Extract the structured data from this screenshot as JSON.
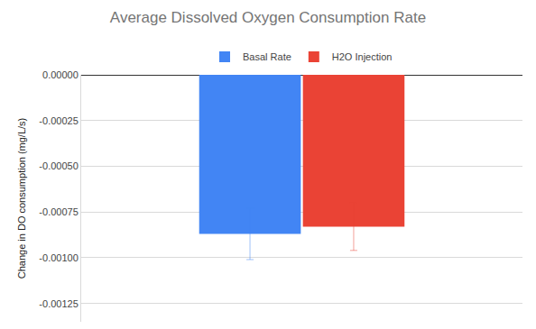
{
  "chart_data": {
    "type": "bar",
    "title": "Average Dissolved Oxygen Consumption Rate",
    "y_label": "Change in DO consumption (mg/L/s)",
    "categories": [
      null
    ],
    "series": [
      {
        "name": "Basal Rate",
        "color": "#4285f4",
        "values": [
          -0.00087
        ],
        "error": [
          0.00014
        ]
      },
      {
        "name": "H2O Injection",
        "color": "#ea4335",
        "values": [
          -0.00083
        ],
        "error": [
          0.00013
        ]
      }
    ],
    "ylim": [
      -0.00135,
      0
    ],
    "yticks": [
      {
        "value": 0,
        "label": "0.00000"
      },
      {
        "value": -0.00025,
        "label": "-0.00025"
      },
      {
        "value": -0.0005,
        "label": "-0.00050"
      },
      {
        "value": -0.00075,
        "label": "-0.00075"
      },
      {
        "value": -0.001,
        "label": "-0.00100"
      },
      {
        "value": -0.00125,
        "label": "-0.00125"
      }
    ],
    "grid": true,
    "legend": "top"
  }
}
